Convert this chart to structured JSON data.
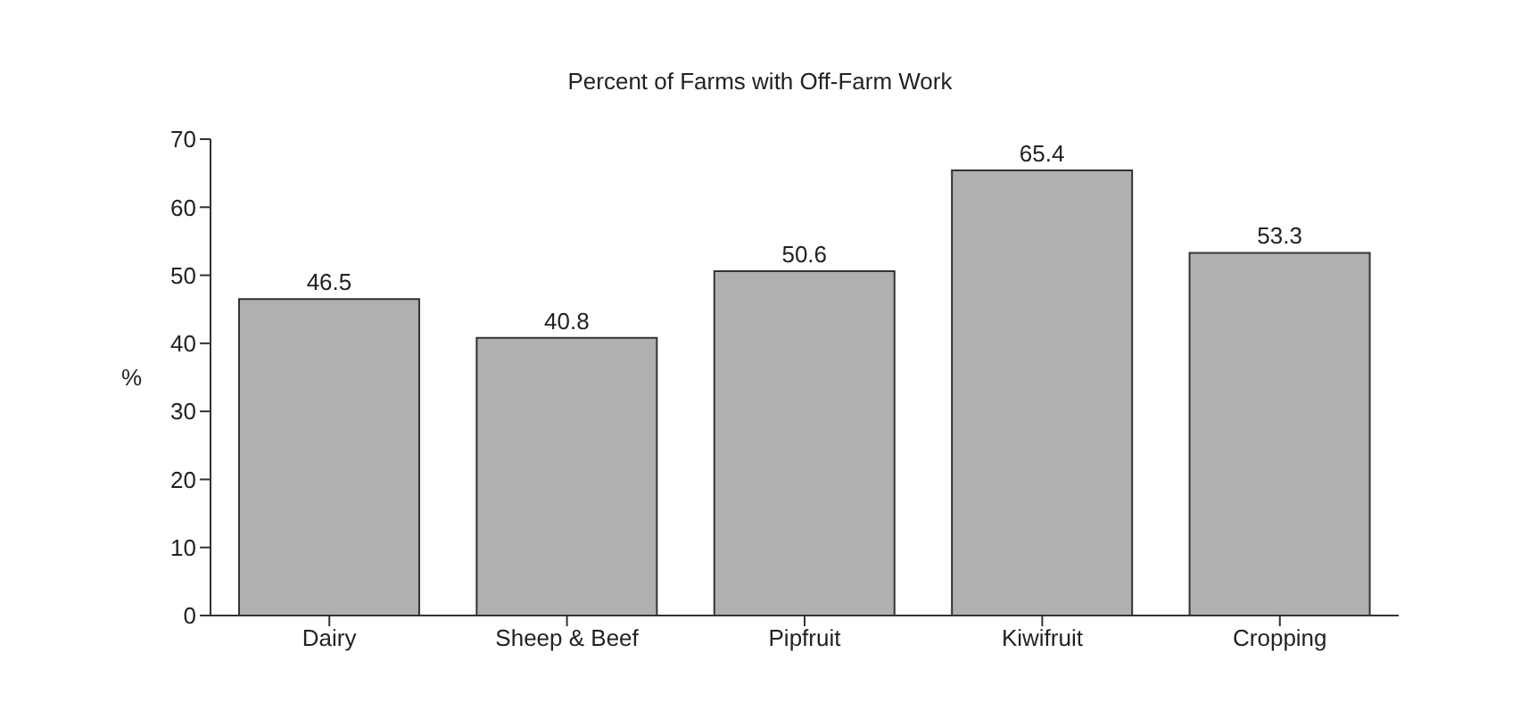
{
  "chart_data": {
    "type": "bar",
    "title": "Percent of Farms with Off-Farm Work",
    "ylabel": "%",
    "categories": [
      "Dairy",
      "Sheep & Beef",
      "Pipfruit",
      "Kiwifruit",
      "Cropping"
    ],
    "values": [
      46.5,
      40.8,
      50.6,
      65.4,
      53.3
    ],
    "color": "#b0b0b0",
    "ylim": [
      0,
      70
    ],
    "yticks": [
      0,
      10,
      20,
      30,
      40,
      50,
      60,
      70
    ],
    "grid": false,
    "data_labels": true
  }
}
